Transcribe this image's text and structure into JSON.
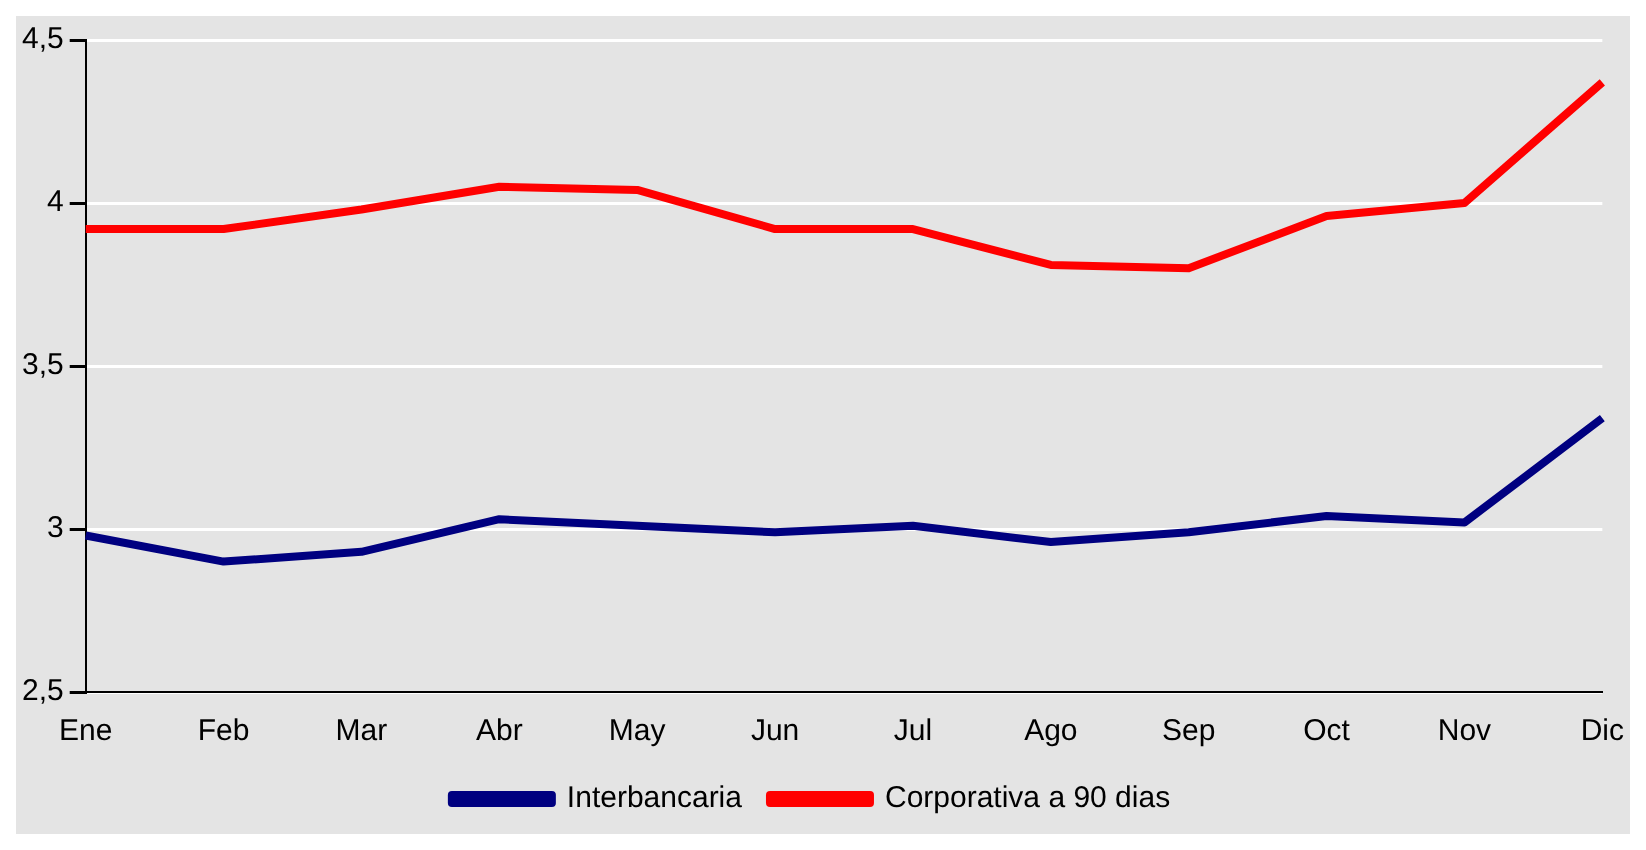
{
  "chart_data": {
    "type": "line",
    "categories": [
      "Ene",
      "Feb",
      "Mar",
      "Abr",
      "May",
      "Jun",
      "Jul",
      "Ago",
      "Sep",
      "Oct",
      "Nov",
      "Dic"
    ],
    "series": [
      {
        "name": "Interbancaria",
        "color": "#000080",
        "values": [
          2.98,
          2.9,
          2.93,
          3.03,
          3.01,
          2.99,
          3.01,
          2.96,
          2.99,
          3.04,
          3.02,
          3.34
        ]
      },
      {
        "name": "Corporativa a 90 dias",
        "color": "#ff0000",
        "values": [
          3.92,
          3.92,
          3.98,
          4.05,
          4.04,
          3.92,
          3.92,
          3.81,
          3.8,
          3.96,
          4.0,
          4.37
        ]
      }
    ],
    "ylim": [
      2.5,
      4.5
    ],
    "yticks": [
      {
        "value": 2.5,
        "label": "2,5"
      },
      {
        "value": 3,
        "label": "3"
      },
      {
        "value": 3.5,
        "label": "3,5"
      },
      {
        "value": 4,
        "label": "4"
      },
      {
        "value": 4.5,
        "label": "4,5"
      }
    ],
    "grid": "y",
    "legend": "bottom",
    "marker": "none",
    "line_style": "solid"
  }
}
